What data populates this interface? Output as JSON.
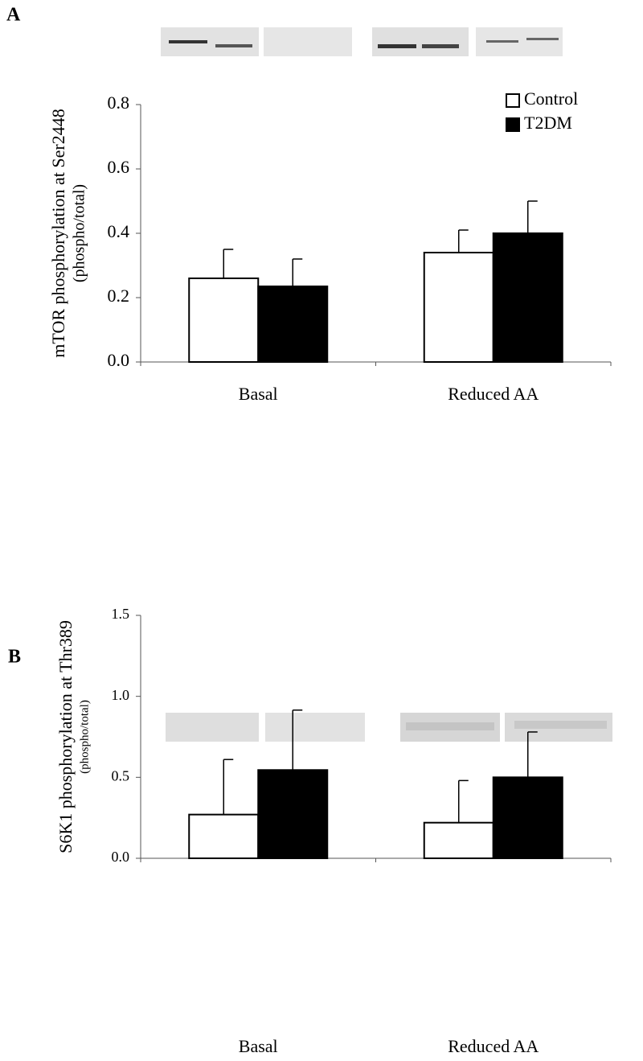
{
  "chart_data": [
    {
      "type": "bar",
      "panel_label": "A",
      "ylabel": "mTOR phosphorylation at Ser2448",
      "ylabel_sub": "(phospho/total)",
      "categories": [
        "Basal",
        "Reduced AA"
      ],
      "series": [
        {
          "name": "Control",
          "color": "#ffffff",
          "values": [
            0.26,
            0.34
          ],
          "errors": [
            0.09,
            0.07
          ]
        },
        {
          "name": "T2DM",
          "color": "#000000",
          "values": [
            0.235,
            0.4
          ],
          "errors": [
            0.085,
            0.1
          ]
        }
      ],
      "ylim": [
        0,
        0.8
      ],
      "yticks": [
        {
          "value": 0,
          "label": "0.0"
        },
        0.2,
        0.4,
        0.6,
        0.8
      ],
      "legend": "upper right"
    },
    {
      "type": "bar",
      "panel_label": "B",
      "ylabel": "S6K1 phosphorylation at Thr389",
      "ylabel_sub": "(phospho/total)",
      "categories": [
        "Basal",
        "Reduced AA"
      ],
      "series": [
        {
          "color": "#ffffff",
          "values": [
            0.27,
            0.22
          ],
          "errors": [
            0.34,
            0.26
          ]
        },
        {
          "color": "#000000",
          "values": [
            0.545,
            0.5
          ],
          "errors": [
            0.37,
            0.28
          ]
        }
      ],
      "ylim": [
        0,
        1.5
      ],
      "yticks": [
        {
          "value": 0,
          "label": "0.0"
        },
        0.5,
        {
          "value": 1,
          "label": "1.0"
        },
        1.5
      ]
    }
  ]
}
